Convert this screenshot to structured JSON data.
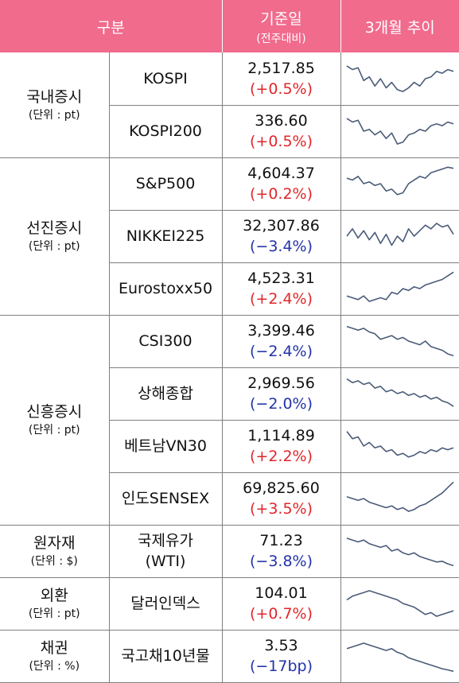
{
  "header": {
    "col_category": "구분",
    "col_value": "기준일",
    "col_value_sub": "(전주대비)",
    "col_trend": "3개월 추이"
  },
  "groups": [
    {
      "name": "국내증시",
      "unit": "(단위 : pt)"
    },
    {
      "name": "선진증시",
      "unit": "(단위 : pt)"
    },
    {
      "name": "신흥증시",
      "unit": "(단위 : pt)"
    },
    {
      "name": "원자재",
      "unit": "(단위 : $)"
    },
    {
      "name": "외환",
      "unit": "(단위 : pt)"
    },
    {
      "name": "채권",
      "unit": "(단위 : %)"
    }
  ],
  "rows": [
    {
      "name": "KOSPI",
      "name2": "",
      "value": "2,517.85",
      "change": "(+0.5%)",
      "direction": "up",
      "trend": [
        0.15,
        0.25,
        0.2,
        0.55,
        0.45,
        0.7,
        0.5,
        0.75,
        0.6,
        0.8,
        0.85,
        0.75,
        0.6,
        0.7,
        0.5,
        0.45,
        0.3,
        0.35,
        0.25,
        0.3
      ]
    },
    {
      "name": "KOSPI200",
      "name2": "",
      "value": "336.60",
      "change": "(+0.5%)",
      "direction": "up",
      "trend": [
        0.15,
        0.25,
        0.2,
        0.5,
        0.45,
        0.6,
        0.5,
        0.7,
        0.55,
        0.85,
        0.8,
        0.6,
        0.55,
        0.45,
        0.5,
        0.35,
        0.3,
        0.35,
        0.25,
        0.3
      ]
    },
    {
      "name": "S&P500",
      "name2": "",
      "value": "4,604.37",
      "change": "(+0.2%)",
      "direction": "up",
      "trend": [
        0.35,
        0.4,
        0.3,
        0.5,
        0.45,
        0.55,
        0.5,
        0.7,
        0.65,
        0.8,
        0.75,
        0.5,
        0.4,
        0.3,
        0.35,
        0.2,
        0.15,
        0.1,
        0.05,
        0.08
      ]
    },
    {
      "name": "NIKKEI225",
      "name2": "",
      "value": "32,307.86",
      "change": "(−3.4%)",
      "direction": "down",
      "trend": [
        0.5,
        0.3,
        0.55,
        0.35,
        0.6,
        0.4,
        0.7,
        0.45,
        0.75,
        0.5,
        0.65,
        0.3,
        0.5,
        0.35,
        0.2,
        0.3,
        0.15,
        0.25,
        0.2,
        0.45
      ]
    },
    {
      "name": "Eurostoxx50",
      "name2": "",
      "value": "4,523.31",
      "change": "(+2.4%)",
      "direction": "up",
      "trend": [
        0.7,
        0.75,
        0.8,
        0.7,
        0.85,
        0.8,
        0.75,
        0.8,
        0.6,
        0.65,
        0.5,
        0.55,
        0.45,
        0.5,
        0.4,
        0.35,
        0.3,
        0.25,
        0.15,
        0.05
      ]
    },
    {
      "name": "CSI300",
      "name2": "",
      "value": "3,399.46",
      "change": "(−2.4%)",
      "direction": "down",
      "trend": [
        0.1,
        0.15,
        0.2,
        0.15,
        0.25,
        0.3,
        0.45,
        0.4,
        0.35,
        0.45,
        0.4,
        0.5,
        0.55,
        0.6,
        0.5,
        0.65,
        0.7,
        0.75,
        0.85,
        0.9
      ]
    },
    {
      "name": "상해종합",
      "name2": "",
      "value": "2,969.56",
      "change": "(−2.0%)",
      "direction": "down",
      "trend": [
        0.1,
        0.2,
        0.15,
        0.25,
        0.2,
        0.35,
        0.3,
        0.45,
        0.4,
        0.5,
        0.45,
        0.55,
        0.5,
        0.6,
        0.55,
        0.65,
        0.6,
        0.7,
        0.75,
        0.85
      ]
    },
    {
      "name": "베트남VN30",
      "name2": "",
      "value": "1,114.89",
      "change": "(+2.2%)",
      "direction": "up",
      "trend": [
        0.1,
        0.3,
        0.25,
        0.5,
        0.4,
        0.55,
        0.5,
        0.65,
        0.6,
        0.75,
        0.7,
        0.8,
        0.75,
        0.65,
        0.7,
        0.6,
        0.65,
        0.55,
        0.6,
        0.55
      ]
    },
    {
      "name": "인도SENSEX",
      "name2": "",
      "value": "69,825.60",
      "change": "(+3.5%)",
      "direction": "up",
      "trend": [
        0.45,
        0.5,
        0.55,
        0.5,
        0.6,
        0.65,
        0.7,
        0.75,
        0.7,
        0.8,
        0.75,
        0.85,
        0.8,
        0.7,
        0.65,
        0.55,
        0.45,
        0.35,
        0.2,
        0.05
      ]
    },
    {
      "name": "국제유가",
      "name2": "(WTI)",
      "value": "71.23",
      "change": "(−3.8%)",
      "direction": "down",
      "trend": [
        0.15,
        0.2,
        0.25,
        0.2,
        0.3,
        0.35,
        0.4,
        0.35,
        0.5,
        0.45,
        0.55,
        0.6,
        0.55,
        0.65,
        0.7,
        0.75,
        0.8,
        0.78,
        0.85,
        0.9
      ]
    },
    {
      "name": "달러인덱스",
      "name2": "",
      "value": "104.01",
      "change": "(+0.7%)",
      "direction": "up",
      "trend": [
        0.4,
        0.3,
        0.25,
        0.2,
        0.15,
        0.2,
        0.25,
        0.3,
        0.35,
        0.4,
        0.5,
        0.55,
        0.6,
        0.7,
        0.8,
        0.75,
        0.85,
        0.8,
        0.75,
        0.7
      ]
    },
    {
      "name": "국고채10년물",
      "name2": "",
      "value": "3.53",
      "change": "(−17bp)",
      "direction": "down",
      "trend": [
        0.3,
        0.25,
        0.2,
        0.15,
        0.2,
        0.25,
        0.3,
        0.35,
        0.3,
        0.4,
        0.45,
        0.55,
        0.6,
        0.65,
        0.7,
        0.75,
        0.8,
        0.85,
        0.88,
        0.92
      ]
    }
  ]
}
